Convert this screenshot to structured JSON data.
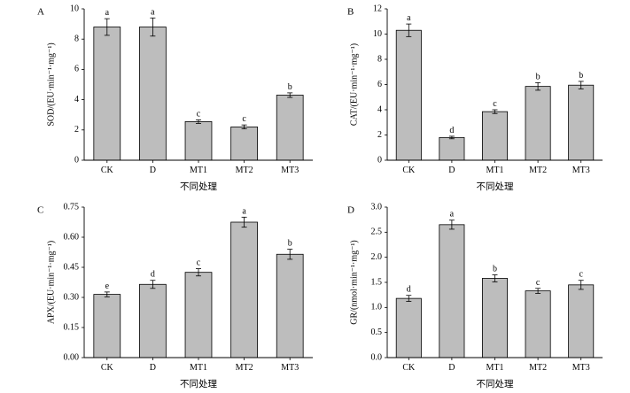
{
  "chart_data": [
    {
      "type": "bar",
      "panel_label": "A",
      "ylabel": "SOD/(EU·min⁻¹·mg⁻¹)",
      "xlabel": "不同处理",
      "ylim": [
        0,
        10
      ],
      "yticks": [
        "0",
        "2",
        "4",
        "6",
        "8",
        "10"
      ],
      "categories": [
        "CK",
        "D",
        "MT1",
        "MT2",
        "MT3"
      ],
      "values": [
        8.8,
        8.8,
        2.55,
        2.2,
        4.3
      ],
      "errors": [
        0.55,
        0.6,
        0.12,
        0.13,
        0.15
      ],
      "letters": [
        "a",
        "a",
        "c",
        "c",
        "b"
      ]
    },
    {
      "type": "bar",
      "panel_label": "B",
      "ylabel": "CAT/(EU·min⁻¹·mg⁻¹)",
      "xlabel": "不同处理",
      "ylim": [
        0,
        12
      ],
      "yticks": [
        "0",
        "2",
        "4",
        "6",
        "8",
        "10",
        "12"
      ],
      "categories": [
        "CK",
        "D",
        "MT1",
        "MT2",
        "MT3"
      ],
      "values": [
        10.3,
        1.8,
        3.85,
        5.85,
        5.95
      ],
      "errors": [
        0.5,
        0.1,
        0.15,
        0.3,
        0.3
      ],
      "letters": [
        "a",
        "d",
        "c",
        "b",
        "b"
      ]
    },
    {
      "type": "bar",
      "panel_label": "C",
      "ylabel": "APX/(EU·min⁻¹·mg⁻¹)",
      "xlabel": "不同处理",
      "ylim": [
        0,
        0.75
      ],
      "yticks": [
        "0.00",
        "0.15",
        "0.30",
        "0.45",
        "0.60",
        "0.75"
      ],
      "categories": [
        "CK",
        "D",
        "MT1",
        "MT2",
        "MT3"
      ],
      "values": [
        0.315,
        0.365,
        0.425,
        0.675,
        0.515
      ],
      "errors": [
        0.012,
        0.02,
        0.018,
        0.025,
        0.025
      ],
      "letters": [
        "e",
        "d",
        "c",
        "a",
        "b"
      ]
    },
    {
      "type": "bar",
      "panel_label": "D",
      "ylabel": "GR/(nmol·min⁻¹·mg⁻¹)",
      "xlabel": "不同处理",
      "ylim": [
        0,
        3.0
      ],
      "yticks": [
        "0.0",
        "0.5",
        "1.0",
        "1.5",
        "2.0",
        "2.5",
        "3.0"
      ],
      "categories": [
        "CK",
        "D",
        "MT1",
        "MT2",
        "MT3"
      ],
      "values": [
        1.18,
        2.65,
        1.58,
        1.33,
        1.45
      ],
      "errors": [
        0.06,
        0.09,
        0.07,
        0.05,
        0.09
      ],
      "letters": [
        "d",
        "a",
        "b",
        "c",
        "c"
      ]
    }
  ]
}
